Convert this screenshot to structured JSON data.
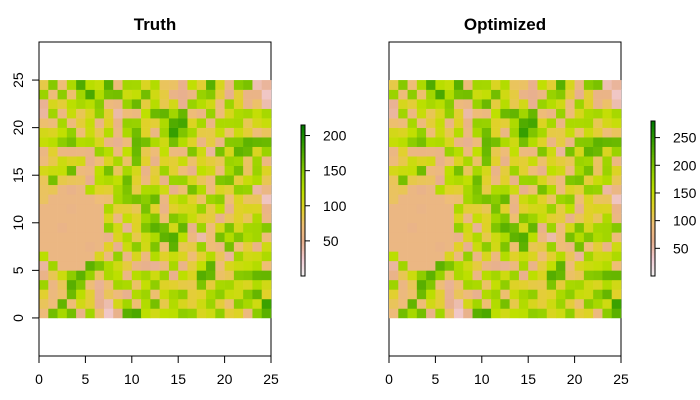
{
  "chart_data": [
    {
      "type": "heatmap",
      "title": "Truth",
      "grid": "25x25 raster cells",
      "xlim": [
        0,
        25
      ],
      "ylim": [
        -4,
        29
      ],
      "raster_extent": {
        "x": [
          0,
          25
        ],
        "y": [
          0,
          25
        ]
      },
      "x_ticks": [
        0,
        5,
        10,
        15,
        20,
        25
      ],
      "y_ticks": [
        0,
        5,
        10,
        15,
        20,
        25
      ],
      "value_range": [
        0,
        215
      ],
      "legend": {
        "ticks": [
          50,
          100,
          150,
          200
        ],
        "placement": "right"
      },
      "palette": [
        "#f2f2f2",
        "#f2cdd4",
        "#e8b08f",
        "#eebd77",
        "#e1d12a",
        "#bfe000",
        "#94d100",
        "#61b400",
        "#2c9a00",
        "#007a00"
      ],
      "noise_seed": 7
    },
    {
      "type": "heatmap",
      "title": "Optimized",
      "grid": "25x25 raster cells",
      "xlim": [
        0,
        25
      ],
      "ylim": [
        -4,
        29
      ],
      "raster_extent": {
        "x": [
          0,
          25
        ],
        "y": [
          0,
          25
        ]
      },
      "x_ticks": [
        0,
        5,
        10,
        15,
        20,
        25
      ],
      "y_ticks": [],
      "value_range": [
        0,
        280
      ],
      "legend": {
        "ticks": [
          50,
          100,
          150,
          200,
          250
        ],
        "placement": "right"
      },
      "palette": [
        "#f2f2f2",
        "#f2cdd4",
        "#e8b08f",
        "#eebd77",
        "#e1d12a",
        "#bfe000",
        "#94d100",
        "#61b400",
        "#2c9a00",
        "#007a00"
      ],
      "noise_seed": 7
    }
  ]
}
